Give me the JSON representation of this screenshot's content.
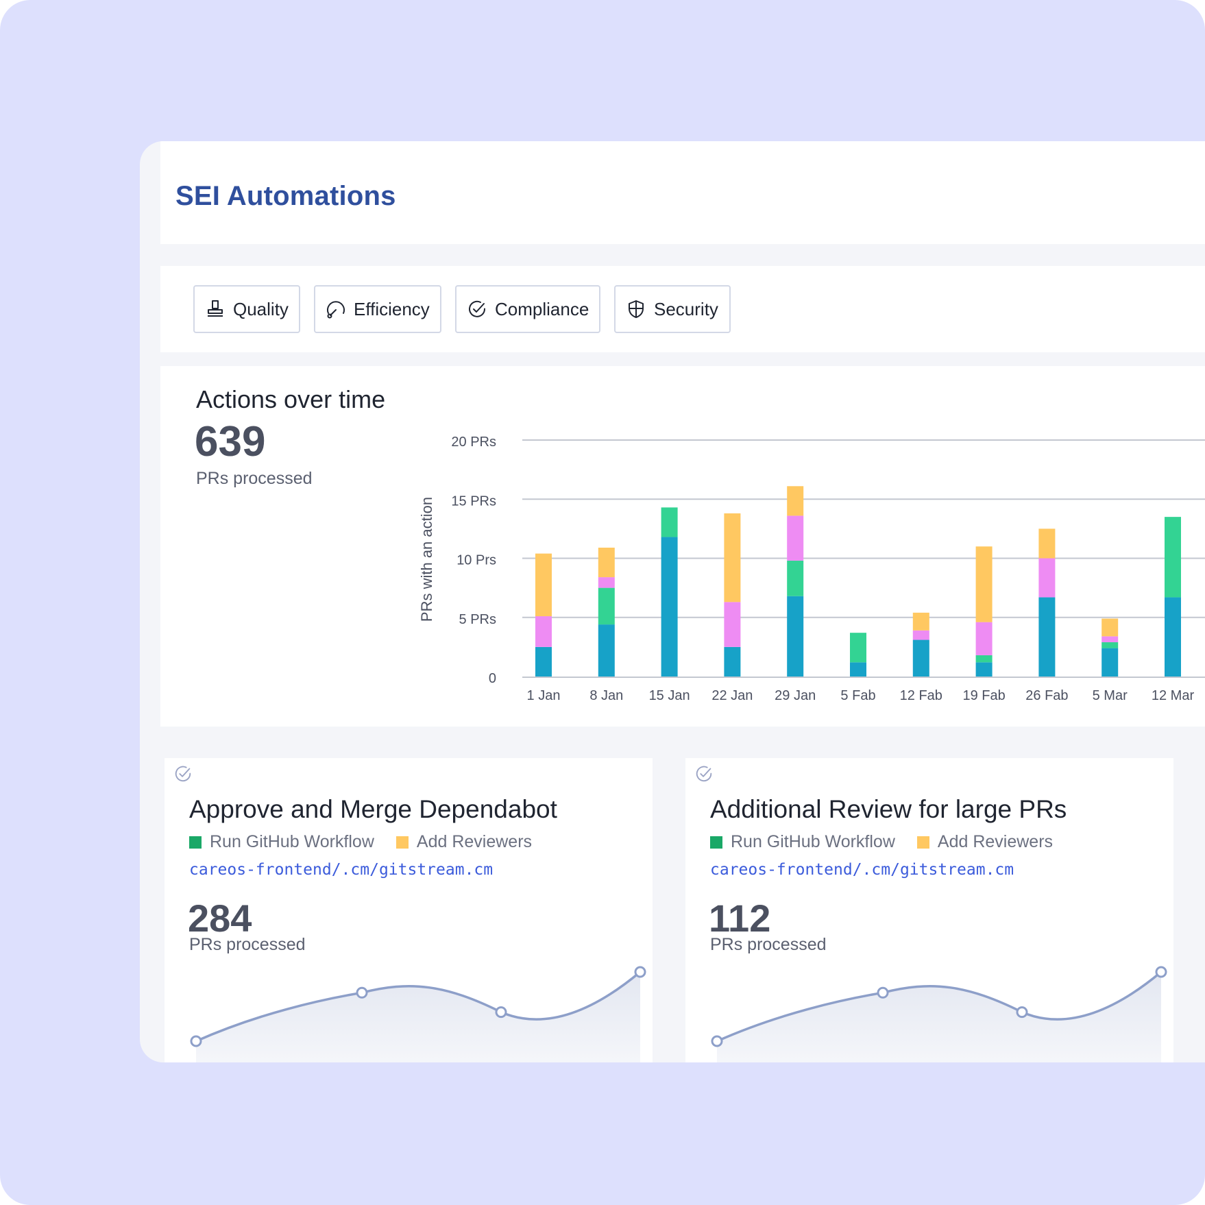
{
  "page": {
    "title": "SEI Automations"
  },
  "filters": [
    {
      "label": "Quality",
      "icon": "stamp-icon"
    },
    {
      "label": "Efficiency",
      "icon": "gauge-icon"
    },
    {
      "label": "Compliance",
      "icon": "check-circle-icon"
    },
    {
      "label": "Security",
      "icon": "shield-icon"
    }
  ],
  "overview": {
    "title": "Actions over time",
    "total": "639",
    "total_caption": "PRs processed"
  },
  "colors": {
    "blue": "#17a2c8",
    "green": "#33d393",
    "pink": "#ee8cf3",
    "yellow": "#ffc861",
    "legend_green": "#1aa867",
    "legend_yellow": "#ffc861",
    "spark_line": "#8d9fc9"
  },
  "chart_data": {
    "type": "bar",
    "stacked": true,
    "categories": [
      "1 Jan",
      "8 Jan",
      "15 Jan",
      "22 Jan",
      "29 Jan",
      "5 Fab",
      "12 Fab",
      "19 Fab",
      "26 Fab",
      "5 Mar",
      "12 Mar"
    ],
    "series": [
      {
        "color": "#17a2c8",
        "values": [
          2.5,
          4.4,
          11.8,
          2.5,
          6.8,
          1.2,
          3.1,
          1.2,
          6.7,
          2.4,
          6.7
        ]
      },
      {
        "color": "#33d393",
        "values": [
          0,
          3.1,
          2.5,
          0,
          3.0,
          2.5,
          0,
          0.6,
          0,
          0.5,
          6.8
        ]
      },
      {
        "color": "#ee8cf3",
        "values": [
          2.6,
          0.9,
          0,
          3.8,
          3.8,
          0,
          0.8,
          2.8,
          3.3,
          0.5,
          0
        ]
      },
      {
        "color": "#ffc861",
        "values": [
          5.3,
          2.5,
          0,
          7.5,
          2.5,
          0,
          1.5,
          6.4,
          2.5,
          1.5,
          0
        ]
      }
    ],
    "ytick_labels": [
      "0",
      "5 PRs",
      "10 Prs",
      "15 PRs",
      "20 PRs"
    ],
    "ylabel": "PRs with an action",
    "ylim": [
      0,
      20
    ],
    "grid": true
  },
  "cards": [
    {
      "title": "Approve and Merge Dependabot",
      "legend": [
        "Run GitHub Workflow",
        "Add Reviewers"
      ],
      "repo": "careos-frontend/.cm/gitstream.cm",
      "count": "284",
      "caption": "PRs processed",
      "trend": [
        0,
        0.7,
        0.42,
        1
      ]
    },
    {
      "title": "Additional Review for large PRs",
      "legend": [
        "Run GitHub Workflow",
        "Add Reviewers"
      ],
      "repo": "careos-frontend/.cm/gitstream.cm",
      "count": "112",
      "caption": "PRs processed",
      "trend": [
        0,
        0.7,
        0.42,
        1
      ]
    }
  ]
}
